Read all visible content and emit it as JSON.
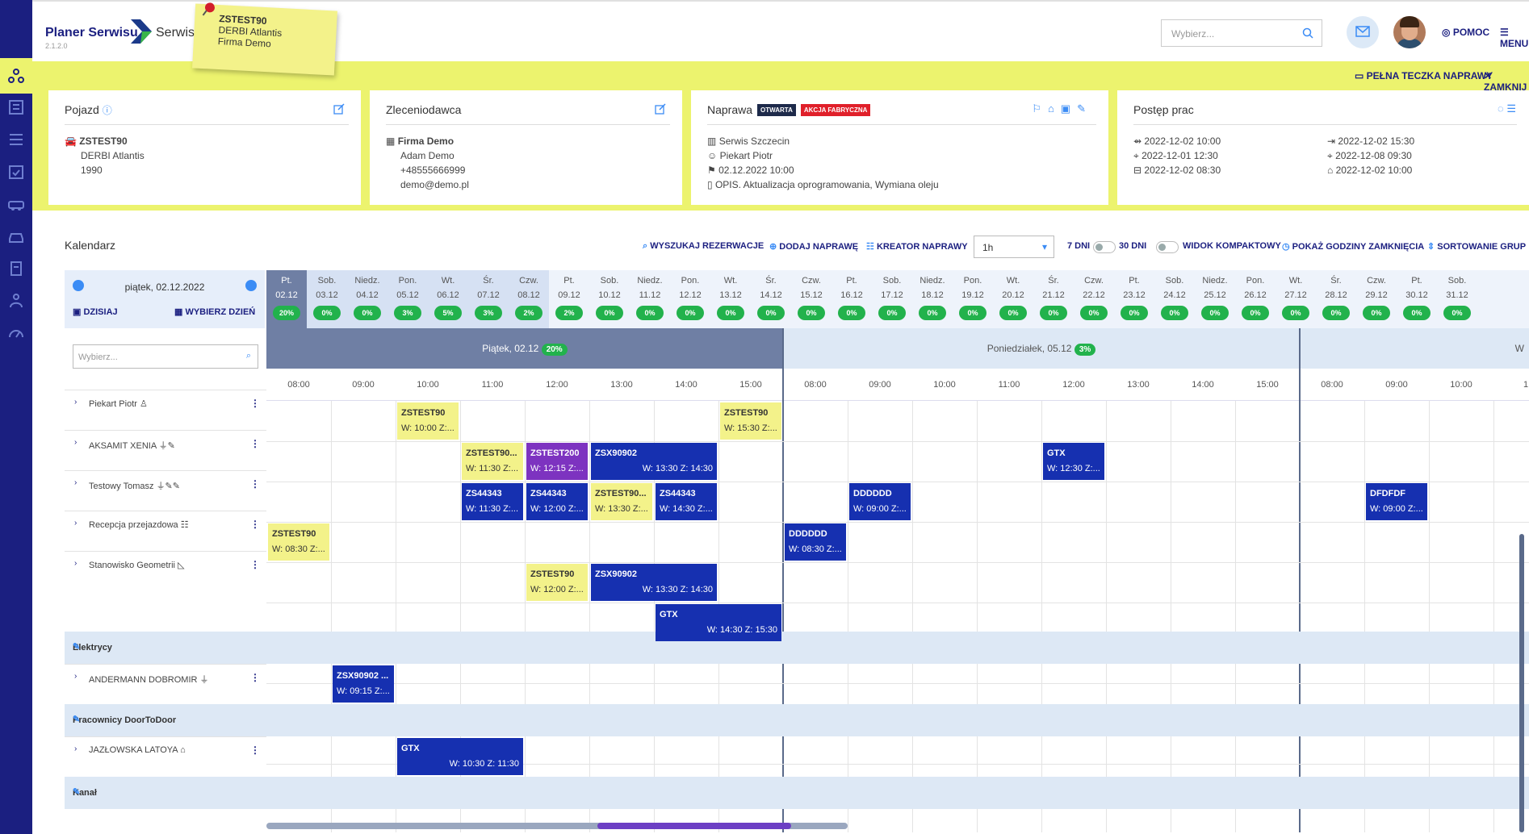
{
  "app": {
    "title": "Planer Serwisu",
    "version": "2.1.2.0",
    "location": "Serwis Szczecin"
  },
  "sticky": {
    "line1": "ZSTEST90",
    "line2": "DERBI Atlantis",
    "line3": "Firma Demo"
  },
  "topbar": {
    "search_placeholder": "Wybierz...",
    "help": "POMOC",
    "menu": "MENU"
  },
  "actions": {
    "full_folder": "PEŁNA TECZKA NAPRAWY",
    "close": "ZAMKNIJ"
  },
  "pojazd": {
    "title": "Pojazd",
    "plate": "ZSTEST90",
    "model": "DERBI Atlantis",
    "year": "1990"
  },
  "zleceniodawca": {
    "title": "Zleceniodawca",
    "company": "Firma Demo",
    "person": "Adam Demo",
    "phone": "+48555666999",
    "email": "demo@demo.pl"
  },
  "naprawa": {
    "title": "Naprawa",
    "badge_open": "OTWARTA",
    "badge_action": "AKCJA FABRYCZNA",
    "workshop": "Serwis Szczecin",
    "person": "Piekart Piotr",
    "date": "02.12.2022 10:00",
    "desc": "OPIS. Aktualizacja oprogramowania, Wymiana oleju"
  },
  "postep": {
    "title": "Postęp prac",
    "c1": [
      "2022-12-02 10:00",
      "2022-12-01 12:30",
      "2022-12-02 08:30"
    ],
    "c2": [
      "2022-12-02 15:30",
      "2022-12-08 09:30",
      "2022-12-02 10:00"
    ]
  },
  "calendar": {
    "title": "Kalendarz",
    "search_res": "WYSZUKAJ REZERWACJE",
    "add_repair": "DODAJ NAPRAWĘ",
    "creator": "KREATOR NAPRAWY",
    "interval": "1h",
    "days7": "7 DNI",
    "days30": "30 DNI",
    "compact": "WIDOK KOMPAKTOWY",
    "show_closing": "POKAŻ GODZINY ZAMKNIĘCIA",
    "sort_groups": "SORTOWANIE GRUP",
    "current_date": "piątek, 02.12.2022",
    "today": "DZISIAJ",
    "choose_day": "WYBIERZ DZIEŃ",
    "list_search": "Wybierz...",
    "days": [
      {
        "n": "Pt.",
        "d": "02.12",
        "p": "20%"
      },
      {
        "n": "Sob.",
        "d": "03.12",
        "p": "0%"
      },
      {
        "n": "Niedz.",
        "d": "04.12",
        "p": "0%"
      },
      {
        "n": "Pon.",
        "d": "05.12",
        "p": "3%"
      },
      {
        "n": "Wt.",
        "d": "06.12",
        "p": "5%"
      },
      {
        "n": "Śr.",
        "d": "07.12",
        "p": "3%"
      },
      {
        "n": "Czw.",
        "d": "08.12",
        "p": "2%"
      },
      {
        "n": "Pt.",
        "d": "09.12",
        "p": "2%"
      },
      {
        "n": "Sob.",
        "d": "10.12",
        "p": "0%"
      },
      {
        "n": "Niedz.",
        "d": "11.12",
        "p": "0%"
      },
      {
        "n": "Pon.",
        "d": "12.12",
        "p": "0%"
      },
      {
        "n": "Wt.",
        "d": "13.12",
        "p": "0%"
      },
      {
        "n": "Śr.",
        "d": "14.12",
        "p": "0%"
      },
      {
        "n": "Czw.",
        "d": "15.12",
        "p": "0%"
      },
      {
        "n": "Pt.",
        "d": "16.12",
        "p": "0%"
      },
      {
        "n": "Sob.",
        "d": "17.12",
        "p": "0%"
      },
      {
        "n": "Niedz.",
        "d": "18.12",
        "p": "0%"
      },
      {
        "n": "Pon.",
        "d": "19.12",
        "p": "0%"
      },
      {
        "n": "Wt.",
        "d": "20.12",
        "p": "0%"
      },
      {
        "n": "Śr.",
        "d": "21.12",
        "p": "0%"
      },
      {
        "n": "Czw.",
        "d": "22.12",
        "p": "0%"
      },
      {
        "n": "Pt.",
        "d": "23.12",
        "p": "0%"
      },
      {
        "n": "Sob.",
        "d": "24.12",
        "p": "0%"
      },
      {
        "n": "Niedz.",
        "d": "25.12",
        "p": "0%"
      },
      {
        "n": "Pon.",
        "d": "26.12",
        "p": "0%"
      },
      {
        "n": "Wt.",
        "d": "27.12",
        "p": "0%"
      },
      {
        "n": "Śr.",
        "d": "28.12",
        "p": "0%"
      },
      {
        "n": "Czw.",
        "d": "29.12",
        "p": "0%"
      },
      {
        "n": "Pt.",
        "d": "30.12",
        "p": "0%"
      },
      {
        "n": "Sob.",
        "d": "31.12",
        "p": "0%"
      }
    ],
    "band1": "Piątek, 02.12",
    "band1_pct": "20%",
    "band2": "Poniedziałek, 05.12",
    "band2_pct": "3%",
    "band3": "W",
    "hours1": [
      "08:00",
      "09:00",
      "10:00",
      "11:00",
      "12:00",
      "13:00",
      "14:00",
      "15:00"
    ],
    "hours2": [
      "08:00",
      "09:00",
      "10:00",
      "11:00",
      "12:00",
      "13:00",
      "14:00",
      "15:00"
    ],
    "hours3": [
      "08:00",
      "09:00",
      "10:00",
      "1"
    ]
  },
  "resources": [
    {
      "name": "Piekart Piotr"
    },
    {
      "name": "AKSAMIT XENIA"
    },
    {
      "name": "Testowy Tomasz"
    },
    {
      "name": "Recepcja przejazdowa"
    },
    {
      "name": "Stanowisko Geometrii"
    }
  ],
  "groups": [
    {
      "name": "Elektrycy",
      "members": [
        "ANDERMANN DOBROMIR"
      ]
    },
    {
      "name": "Pracownicy DoorToDoor",
      "members": [
        "JAZŁOWSKA LATOYA"
      ]
    },
    {
      "name": "Kanał",
      "members": []
    }
  ],
  "events": [
    {
      "t": "ZSTEST90",
      "s": "W: 10:00 Z:...",
      "c": "y"
    },
    {
      "t": "ZSTEST90",
      "s": "W: 15:30 Z:...",
      "c": "y"
    },
    {
      "t": "ZSTEST90...",
      "s": "W: 11:30 Z:...",
      "c": "y"
    },
    {
      "t": "ZSTEST200",
      "s": "W: 12:15 Z:...",
      "c": "p"
    },
    {
      "t": "ZSX90902",
      "s": "W: 13:30 Z: 14:30",
      "c": "b"
    },
    {
      "t": "GTX",
      "s": "W: 12:30 Z:...",
      "c": "b"
    },
    {
      "t": "ZS44343",
      "s": "W: 11:30 Z:...",
      "c": "b"
    },
    {
      "t": "ZS44343",
      "s": "W: 12:00 Z:...",
      "c": "b"
    },
    {
      "t": "ZSTEST90...",
      "s": "W: 13:30 Z:...",
      "c": "y"
    },
    {
      "t": "ZS44343",
      "s": "W: 14:30 Z:...",
      "c": "b"
    },
    {
      "t": "DDDDDD",
      "s": "W: 09:00 Z:...",
      "c": "b"
    },
    {
      "t": "DFDFDF",
      "s": "W: 09:00 Z:...",
      "c": "b"
    },
    {
      "t": "ZSTEST90",
      "s": "W: 08:30 Z:...",
      "c": "y"
    },
    {
      "t": "DDDDDD",
      "s": "W: 08:30 Z:...",
      "c": "b"
    },
    {
      "t": "ZSTEST90",
      "s": "W: 12:00 Z:...",
      "c": "y"
    },
    {
      "t": "ZSX90902",
      "s": "W: 13:30 Z: 14:30",
      "c": "b"
    },
    {
      "t": "GTX",
      "s": "W: 14:30 Z: 15:30",
      "c": "b"
    },
    {
      "t": "ZSX90902 ...",
      "s": "W: 09:15 Z:...",
      "c": "b"
    },
    {
      "t": "GTX",
      "s": "W: 10:30 Z: 11:30",
      "c": "b"
    }
  ]
}
